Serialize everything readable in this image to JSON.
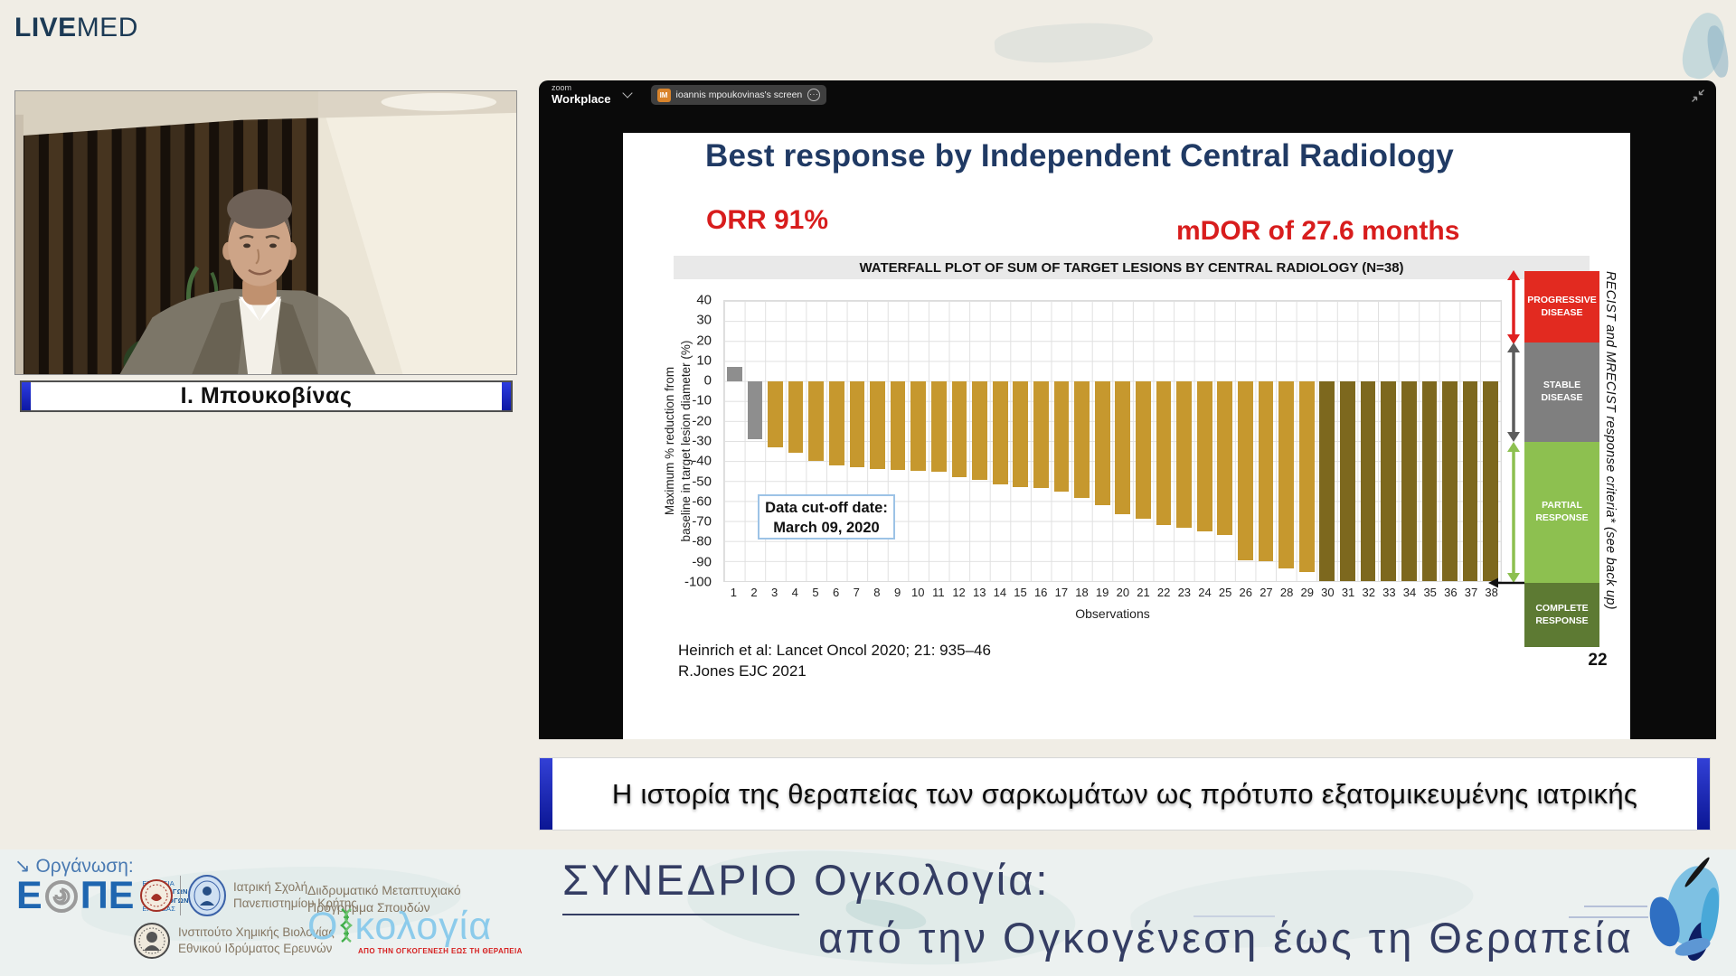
{
  "brand": {
    "live": "LIVE",
    "med": "MED"
  },
  "speaker": {
    "name": "Ι. Μπουκοβίνας"
  },
  "zoom": {
    "brand_top": "zoom",
    "brand_bottom": "Workplace",
    "share_avatar_initials": "IM",
    "share_label": "ioannis mpoukovinas's screen",
    "more_label": "···"
  },
  "slide": {
    "title": "Best response by Independent Central Radiology",
    "orr": "ORR 91%",
    "mdor": "mDOR of 27.6 months",
    "chart_header": "WATERFALL PLOT OF SUM OF TARGET LESIONS BY CENTRAL RADIOLOGY (N=38)",
    "cutoff": {
      "line1": "Data cut-off date:",
      "line2": "March 09, 2020"
    },
    "references": [
      "Heinrich et al: Lancet Oncol 2020; 21: 935–46",
      "R.Jones EJC 2021"
    ],
    "page_number": "22",
    "legend": [
      {
        "label": "PROGRESSIVE DISEASE",
        "color": "#e22a20"
      },
      {
        "label": "STABLE DISEASE",
        "color": "#7f7f7f"
      },
      {
        "label": "PARTIAL RESPONSE",
        "color": "#8dc050"
      },
      {
        "label": "COMPLETE RESPONSE",
        "color": "#5d7a33"
      }
    ],
    "side_note": "RECIST and MRECIST response criteria* (see back up)"
  },
  "chart_data": {
    "type": "bar",
    "title": "WATERFALL PLOT OF SUM OF TARGET LESIONS BY CENTRAL RADIOLOGY (N=38)",
    "xlabel": "Observations",
    "ylabel": "Maximum % reduction from baseline in target lesion diameter (%)",
    "ylabel_line1": "Maximum % reduction from",
    "ylabel_line2": "baseline in target lesion diameter (%)",
    "ylim": [
      -100,
      40
    ],
    "ytick_step": 10,
    "grid": true,
    "legend_position": "right",
    "x": [
      1,
      2,
      3,
      4,
      5,
      6,
      7,
      8,
      9,
      10,
      11,
      12,
      13,
      14,
      15,
      16,
      17,
      18,
      19,
      20,
      21,
      22,
      23,
      24,
      25,
      26,
      27,
      28,
      29,
      30,
      31,
      32,
      33,
      34,
      35,
      36,
      37,
      38
    ],
    "values": [
      7,
      -29,
      -33,
      -36,
      -40,
      -42,
      -43,
      -44,
      -44.5,
      -45,
      -45.5,
      -48,
      -49.5,
      -51.5,
      -53,
      -53.5,
      -55.5,
      -58.5,
      -62,
      -66.5,
      -69,
      -72,
      -73.5,
      -75,
      -77,
      -89.5,
      -90,
      -93.5,
      -95.5,
      -100,
      -100,
      -100,
      -100,
      -100,
      -100,
      -100,
      -100,
      -100
    ],
    "bar_colors": [
      "#8e8e8e",
      "#8e8e8e",
      "#c6982e",
      "#c6982e",
      "#c6982e",
      "#c6982e",
      "#c6982e",
      "#c6982e",
      "#c6982e",
      "#c6982e",
      "#c6982e",
      "#c6982e",
      "#c6982e",
      "#c6982e",
      "#c6982e",
      "#c6982e",
      "#c6982e",
      "#c6982e",
      "#c6982e",
      "#c6982e",
      "#c6982e",
      "#c6982e",
      "#c6982e",
      "#c6982e",
      "#c6982e",
      "#c6982e",
      "#c6982e",
      "#c6982e",
      "#c6982e",
      "#7d681e",
      "#7d681e",
      "#7d681e",
      "#7d681e",
      "#7d681e",
      "#7d681e",
      "#7d681e",
      "#7d681e",
      "#7d681e"
    ]
  },
  "caption": {
    "text": "Η ιστορία της θεραπείας των σαρκωμάτων ως πρότυπο εξατομικευμένης ιατρικής"
  },
  "footer": {
    "organization_label": "Οργάνωση:",
    "eope": {
      "letters_left": "Ε",
      "letters_right": "ΠΕ",
      "line1": "ΕΤΑΙΡΕΙΑ",
      "line2": "ΟΓΚΟΛΟΓΩΝ",
      "line3": "ΠΑΘΟΛΟΓΩΝ",
      "line4": "ΕΛΛΑΔΑΣ"
    },
    "crete": {
      "line1": "Ιατρική Σχολή",
      "line2": "Πανεπιστημίου Κρήτης"
    },
    "eie": {
      "line1": "Ινστιτούτο Χημικής Βιολογίας",
      "line2": "Εθνικού Ιδρύματος Ερευνών"
    },
    "masters": {
      "line1": "Διιδρυματικό Μεταπτυχιακό",
      "line2": "Πρόγραμμα Σπουδών"
    },
    "oncology_logo": {
      "word_prefix": "Ο",
      "word_suffix": "κολογία",
      "full_word": "Ογκολογία",
      "tagline": "ΑΠΟ ΤΗΝ ΟΓΚΟΓΕΝΕΣΗ ΕΩΣ ΤΗ ΘΕΡΑΠΕΙΑ"
    },
    "conference": {
      "line1_underlined": "ΣΥΝΕΔΡΙΟ",
      "line1_rest": " Ογκολογία:",
      "line2": "από την Ογκογένεση έως τη Θεραπεία"
    }
  }
}
